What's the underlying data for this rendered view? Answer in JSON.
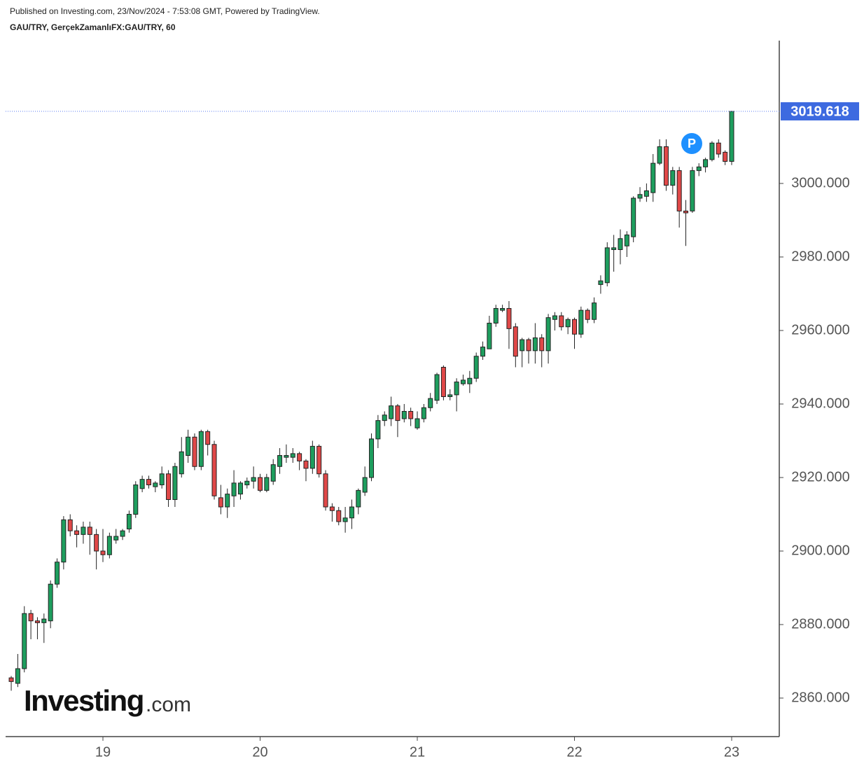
{
  "chart_data": {
    "type": "candlestick",
    "header": "Published on Investing.com, 23/Nov/2024 - 7:53:08 GMT, Powered by TradingView.",
    "title": "GAU/TRY, GerçekZamanlıFX:GAU/TRY, 60",
    "logo": {
      "brand": "Investing",
      "suffix": ".com"
    },
    "annotation": "P",
    "up_color": "#1e9e5e",
    "down_color": "#e04848",
    "x": [
      10,
      11,
      12,
      13,
      14,
      15,
      16,
      17,
      18,
      19,
      20,
      21,
      22,
      23,
      24,
      25,
      26,
      27,
      28,
      29,
      30,
      31,
      32,
      33,
      34,
      35,
      36,
      37,
      38,
      39,
      40,
      41,
      42,
      43,
      44,
      45,
      46,
      47,
      48,
      49,
      50,
      51,
      52,
      53,
      54,
      55,
      56,
      57,
      58,
      59,
      60,
      61,
      62,
      63,
      64,
      65,
      66,
      67,
      68,
      69,
      70,
      71,
      72,
      73,
      74,
      75,
      76,
      77,
      78,
      79,
      80,
      81,
      82,
      83,
      84,
      85,
      86,
      87,
      88,
      89,
      90,
      91,
      92,
      93,
      94,
      95,
      96,
      97,
      98,
      99,
      100,
      101,
      102,
      103,
      104,
      105,
      106,
      107,
      108,
      109,
      110,
      111,
      112,
      113,
      114,
      115,
      116,
      117,
      118,
      119,
      120
    ],
    "open": [
      2865.5,
      2864,
      2868,
      2883,
      2881,
      2880.5,
      2881,
      2891,
      2897,
      2908.5,
      2905.5,
      2904.5,
      2906.5,
      2904.5,
      2900,
      2899,
      2903,
      2904,
      2906,
      2910,
      2917,
      2919.5,
      2917.5,
      2918,
      2921,
      2914,
      2921,
      2926,
      2931,
      2923,
      2932.5,
      2929,
      2914.5,
      2912,
      2915,
      2915.5,
      2918,
      2919,
      2920,
      2916.5,
      2919,
      2923,
      2925.5,
      2925.5,
      2926.5,
      2924.5,
      2922.5,
      2928.5,
      2921,
      2912,
      2911,
      2908,
      2909,
      2912,
      2916,
      2920,
      2930.5,
      2935.5,
      2936,
      2939.5,
      2936,
      2938,
      2933.5,
      2936,
      2939,
      2941,
      2950,
      2942,
      2942.5,
      2945.5,
      2945.5,
      2947,
      2953,
      2955,
      2962,
      2965.5,
      2966,
      2961,
      2954.5,
      2957.5,
      2954.5,
      2958,
      2954.5,
      2963,
      2964,
      2961,
      2963,
      2959,
      2965.5,
      2963,
      2972.5,
      2973,
      2982,
      2982,
      2983,
      2985.5,
      2996,
      2996.5,
      2997.5,
      3005.5,
      3010,
      2999.5,
      3003.5,
      2992.5,
      2992.5,
      3003.5,
      3004.5,
      3006.5,
      3011,
      3008.5,
      3006
    ],
    "high": [
      2866,
      2872,
      2885,
      2884,
      2882,
      2883,
      2892,
      2898,
      2909.5,
      2910,
      2907,
      2908,
      2908,
      2906,
      2906,
      2905,
      2906,
      2906,
      2911,
      2919,
      2920.5,
      2920.5,
      2919,
      2923,
      2922,
      2924,
      2931,
      2933,
      2932,
      2933,
      2933,
      2930,
      2918,
      2917,
      2922,
      2919,
      2920,
      2923,
      2921,
      2921,
      2925,
      2928,
      2929,
      2928,
      2927,
      2925,
      2930,
      2929,
      2922,
      2913,
      2912,
      2912,
      2914,
      2917,
      2923,
      2932,
      2937,
      2938,
      2942,
      2940,
      2940,
      2939,
      2938,
      2940,
      2943,
      2948.5,
      2950.5,
      2944,
      2947,
      2948,
      2949,
      2954,
      2957,
      2964,
      2967,
      2967,
      2968,
      2962,
      2958,
      2958,
      2962,
      2959,
      2964.5,
      2965,
      2965,
      2963.5,
      2963.5,
      2966.5,
      2966,
      2969,
      2975,
      2984,
      2986,
      2987.5,
      2987,
      2996.5,
      2999,
      3000,
      3008,
      3012,
      3012,
      3004.5,
      3004.5,
      2995.5,
      3004.5,
      3005.5,
      3007,
      3011.5,
      3012,
      3009,
      3019.618
    ],
    "low": [
      2862,
      2863,
      2867,
      2876,
      2876,
      2875,
      2879,
      2890,
      2895,
      2904,
      2901,
      2902,
      2899,
      2895,
      2897,
      2898,
      2902,
      2903,
      2905,
      2909,
      2916,
      2917,
      2916,
      2917,
      2912,
      2912,
      2920,
      2924,
      2922,
      2922,
      2926,
      2914,
      2910,
      2909,
      2912,
      2914,
      2917,
      2917,
      2916,
      2916,
      2918,
      2921,
      2924,
      2924,
      2922,
      2919,
      2921,
      2920,
      2911,
      2908,
      2907,
      2905,
      2906,
      2910,
      2915,
      2919,
      2928,
      2934,
      2934,
      2931,
      2935,
      2934,
      2933,
      2935,
      2938,
      2940,
      2941,
      2941,
      2938,
      2945,
      2943,
      2946,
      2952,
      2955,
      2961,
      2965,
      2955,
      2950,
      2950,
      2951,
      2951,
      2950,
      2951,
      2960,
      2960,
      2959,
      2955,
      2958,
      2962,
      2962,
      2970,
      2972,
      2976,
      2978,
      2980,
      2984,
      2995,
      2995,
      2995,
      3005,
      2998,
      2997,
      2988,
      2983,
      2992,
      3002,
      3003,
      3006,
      3007,
      3005,
      3005
    ],
    "close": [
      2864.5,
      2868,
      2883,
      2881,
      2880.5,
      2881.5,
      2891,
      2897,
      2908.5,
      2905.5,
      2904.5,
      2906.5,
      2904.5,
      2900,
      2899,
      2904,
      2904,
      2905.5,
      2910,
      2918,
      2919.5,
      2918,
      2918.5,
      2921,
      2914,
      2923,
      2927,
      2931,
      2923,
      2932.5,
      2929,
      2915,
      2912,
      2915.5,
      2918.5,
      2918.5,
      2919,
      2920,
      2916.5,
      2920,
      2923.5,
      2926,
      2926,
      2926.5,
      2924.5,
      2922.5,
      2928.5,
      2921,
      2912,
      2911,
      2908,
      2909,
      2912,
      2916.5,
      2920,
      2930.5,
      2935.5,
      2937,
      2939.5,
      2935.5,
      2938,
      2936,
      2936,
      2939,
      2941.5,
      2948,
      2942,
      2942.5,
      2946,
      2946.5,
      2947,
      2953,
      2955.5,
      2962,
      2966,
      2966,
      2960.5,
      2953,
      2957.5,
      2954.5,
      2958,
      2954.5,
      2963.5,
      2964,
      2961,
      2963,
      2959,
      2965.5,
      2963,
      2967.5,
      2973.5,
      2982.5,
      2982.5,
      2985,
      2986,
      2996,
      2997,
      2998,
      3005.5,
      3010,
      2999.5,
      3003.5,
      2992.5,
      2992,
      3003.5,
      3004.5,
      3006.5,
      3011,
      3008,
      3006,
      3019.618
    ],
    "xlim": [
      9.14,
      127.27
    ],
    "xticks": [
      {
        "value": 24,
        "label": "19"
      },
      {
        "value": 48,
        "label": "20"
      },
      {
        "value": 72,
        "label": "21"
      },
      {
        "value": 96,
        "label": "22"
      },
      {
        "value": 120,
        "label": "23"
      }
    ],
    "ylim": [
      2849.52,
      3038.86
    ],
    "yticks": [
      {
        "value": 2860,
        "label": "2860.000"
      },
      {
        "value": 2880,
        "label": "2880.000"
      },
      {
        "value": 2900,
        "label": "2900.000"
      },
      {
        "value": 2920,
        "label": "2920.000"
      },
      {
        "value": 2940,
        "label": "2940.000"
      },
      {
        "value": 2960,
        "label": "2960.000"
      },
      {
        "value": 2980,
        "label": "2980.000"
      },
      {
        "value": 3000,
        "label": "3000.000"
      }
    ],
    "grid": false
  }
}
